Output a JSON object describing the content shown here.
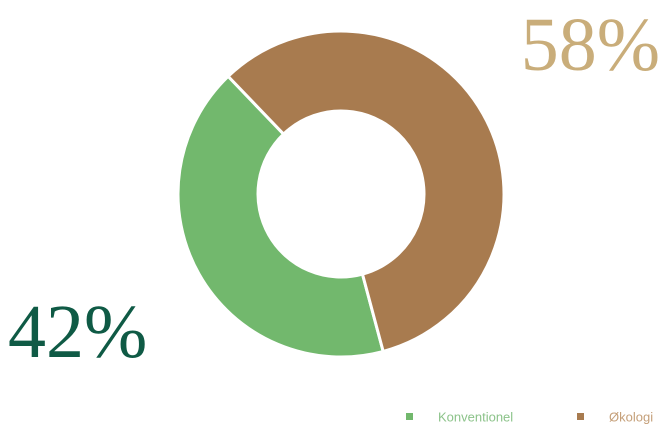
{
  "chart_data": {
    "type": "donut",
    "categories": [
      "Konventionel",
      "Økologi"
    ],
    "values": [
      42,
      58
    ],
    "value_labels": [
      "42%",
      "58%"
    ],
    "colors": [
      "#72b86d",
      "#a87b4f"
    ],
    "label_colors": [
      "#0f5a45",
      "#c9ad7a"
    ],
    "legend_text_colors": [
      "#8cc38a",
      "#c5a07a"
    ]
  }
}
